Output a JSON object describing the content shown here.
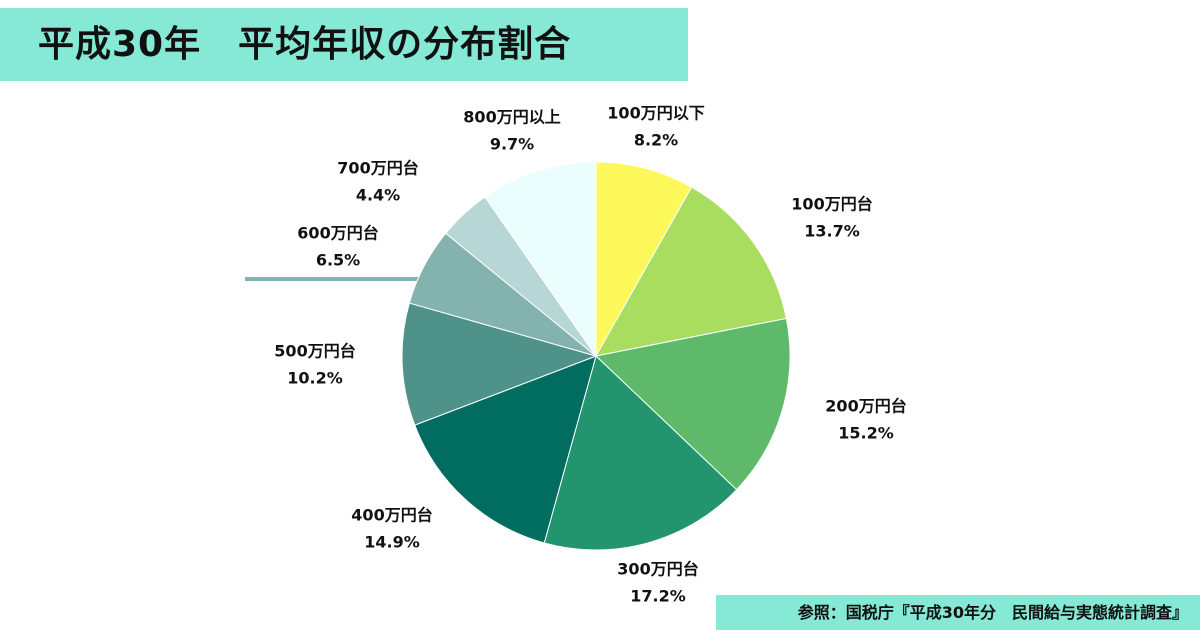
{
  "title": "平成30年　平均年収の分布割合",
  "source": "参照：国税庁『平成30年分　民間給与実態統計調査』",
  "chart_data": {
    "type": "pie",
    "title": "平成30年　平均年収の分布割合",
    "start_angle_deg": 0,
    "direction": "clockwise",
    "legend": "none",
    "slices": [
      {
        "label": "100万円以下",
        "value": 8.2,
        "value_label": "8.2%",
        "color": "#fdf95a"
      },
      {
        "label": "100万円台",
        "value": 13.7,
        "value_label": "13.7%",
        "color": "#a8dd60"
      },
      {
        "label": "200万円台",
        "value": 15.2,
        "value_label": "15.2%",
        "color": "#5eba6a"
      },
      {
        "label": "300万円台",
        "value": 17.2,
        "value_label": "17.2%",
        "color": "#22956f"
      },
      {
        "label": "400万円台",
        "value": 14.9,
        "value_label": "14.9%",
        "color": "#006d60"
      },
      {
        "label": "500万円台",
        "value": 10.2,
        "value_label": "10.2%",
        "color": "#4f9289"
      },
      {
        "label": "600万円台",
        "value": 6.5,
        "value_label": "6.5%",
        "color": "#84b2ae"
      },
      {
        "label": "700万円台",
        "value": 4.4,
        "value_label": "4.4%",
        "color": "#b6d7d6"
      },
      {
        "label": "800万円以上",
        "value": 9.7,
        "value_label": "9.7%",
        "color": "#ebfefe"
      }
    ]
  }
}
